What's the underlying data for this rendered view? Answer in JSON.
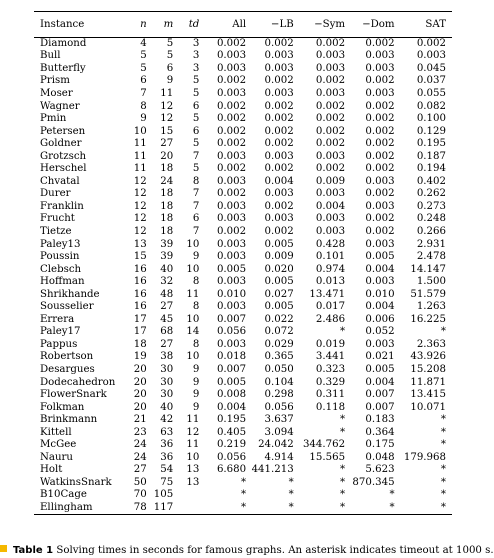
{
  "table": {
    "headers": [
      "Instance",
      "n",
      "m",
      "td",
      "All",
      "−LB",
      "−Sym",
      "−Dom",
      "SAT"
    ],
    "rows": [
      [
        "Diamond",
        "4",
        "5",
        "3",
        "0.002",
        "0.002",
        "0.002",
        "0.002",
        "0.002"
      ],
      [
        "Bull",
        "5",
        "5",
        "3",
        "0.003",
        "0.003",
        "0.003",
        "0.003",
        "0.003"
      ],
      [
        "Butterfly",
        "5",
        "6",
        "3",
        "0.003",
        "0.003",
        "0.003",
        "0.003",
        "0.045"
      ],
      [
        "Prism",
        "6",
        "9",
        "5",
        "0.002",
        "0.002",
        "0.002",
        "0.002",
        "0.037"
      ],
      [
        "Moser",
        "7",
        "11",
        "5",
        "0.003",
        "0.003",
        "0.003",
        "0.003",
        "0.055"
      ],
      [
        "Wagner",
        "8",
        "12",
        "6",
        "0.002",
        "0.002",
        "0.002",
        "0.002",
        "0.082"
      ],
      [
        "Pmin",
        "9",
        "12",
        "5",
        "0.002",
        "0.002",
        "0.002",
        "0.002",
        "0.100"
      ],
      [
        "Petersen",
        "10",
        "15",
        "6",
        "0.002",
        "0.002",
        "0.002",
        "0.002",
        "0.129"
      ],
      [
        "Goldner",
        "11",
        "27",
        "5",
        "0.002",
        "0.002",
        "0.002",
        "0.002",
        "0.195"
      ],
      [
        "Grotzsch",
        "11",
        "20",
        "7",
        "0.003",
        "0.003",
        "0.003",
        "0.002",
        "0.187"
      ],
      [
        "Herschel",
        "11",
        "18",
        "5",
        "0.002",
        "0.002",
        "0.002",
        "0.002",
        "0.194"
      ],
      [
        "Chvatal",
        "12",
        "24",
        "8",
        "0.003",
        "0.004",
        "0.009",
        "0.003",
        "0.402"
      ],
      [
        "Durer",
        "12",
        "18",
        "7",
        "0.002",
        "0.003",
        "0.003",
        "0.002",
        "0.262"
      ],
      [
        "Franklin",
        "12",
        "18",
        "7",
        "0.003",
        "0.002",
        "0.004",
        "0.003",
        "0.273"
      ],
      [
        "Frucht",
        "12",
        "18",
        "6",
        "0.003",
        "0.003",
        "0.003",
        "0.002",
        "0.248"
      ],
      [
        "Tietze",
        "12",
        "18",
        "7",
        "0.002",
        "0.002",
        "0.003",
        "0.002",
        "0.266"
      ],
      [
        "Paley13",
        "13",
        "39",
        "10",
        "0.003",
        "0.005",
        "0.428",
        "0.003",
        "2.931"
      ],
      [
        "Poussin",
        "15",
        "39",
        "9",
        "0.003",
        "0.009",
        "0.101",
        "0.005",
        "2.478"
      ],
      [
        "Clebsch",
        "16",
        "40",
        "10",
        "0.005",
        "0.020",
        "0.974",
        "0.004",
        "14.147"
      ],
      [
        "Hoffman",
        "16",
        "32",
        "8",
        "0.003",
        "0.005",
        "0.013",
        "0.003",
        "1.500"
      ],
      [
        "Shrikhande",
        "16",
        "48",
        "11",
        "0.010",
        "0.027",
        "13.471",
        "0.010",
        "51.579"
      ],
      [
        "Sousselier",
        "16",
        "27",
        "8",
        "0.003",
        "0.005",
        "0.017",
        "0.004",
        "1.263"
      ],
      [
        "Errera",
        "17",
        "45",
        "10",
        "0.007",
        "0.022",
        "2.486",
        "0.006",
        "16.225"
      ],
      [
        "Paley17",
        "17",
        "68",
        "14",
        "0.056",
        "0.072",
        "*",
        "0.052",
        "*"
      ],
      [
        "Pappus",
        "18",
        "27",
        "8",
        "0.003",
        "0.029",
        "0.019",
        "0.003",
        "2.363"
      ],
      [
        "Robertson",
        "19",
        "38",
        "10",
        "0.018",
        "0.365",
        "3.441",
        "0.021",
        "43.926"
      ],
      [
        "Desargues",
        "20",
        "30",
        "9",
        "0.007",
        "0.050",
        "0.323",
        "0.005",
        "15.208"
      ],
      [
        "Dodecahedron",
        "20",
        "30",
        "9",
        "0.005",
        "0.104",
        "0.329",
        "0.004",
        "11.871"
      ],
      [
        "FlowerSnark",
        "20",
        "30",
        "9",
        "0.008",
        "0.298",
        "0.311",
        "0.007",
        "13.415"
      ],
      [
        "Folkman",
        "20",
        "40",
        "9",
        "0.004",
        "0.056",
        "0.118",
        "0.007",
        "10.071"
      ],
      [
        "Brinkmann",
        "21",
        "42",
        "11",
        "0.195",
        "3.637",
        "*",
        "0.183",
        "*"
      ],
      [
        "Kittell",
        "23",
        "63",
        "12",
        "0.405",
        "3.094",
        "*",
        "0.364",
        "*"
      ],
      [
        "McGee",
        "24",
        "36",
        "11",
        "0.219",
        "24.042",
        "344.762",
        "0.175",
        "*"
      ],
      [
        "Nauru",
        "24",
        "36",
        "10",
        "0.056",
        "4.914",
        "15.565",
        "0.048",
        "179.968"
      ],
      [
        "Holt",
        "27",
        "54",
        "13",
        "6.680",
        "441.213",
        "*",
        "5.623",
        "*"
      ],
      [
        "WatkinsSnark",
        "50",
        "75",
        "13",
        "*",
        "*",
        "*",
        "870.345",
        "*"
      ],
      [
        "B10Cage",
        "70",
        "105",
        "",
        "*",
        "*",
        "*",
        "*",
        "*"
      ],
      [
        "Ellingham",
        "78",
        "117",
        "",
        "*",
        "*",
        "*",
        "*",
        "*"
      ]
    ]
  },
  "caption": {
    "label": "Table 1",
    "text": "Solving times in seconds for famous graphs. An asterisk indicates timeout at 1000 s.",
    "marker_color": "#f5b800"
  }
}
